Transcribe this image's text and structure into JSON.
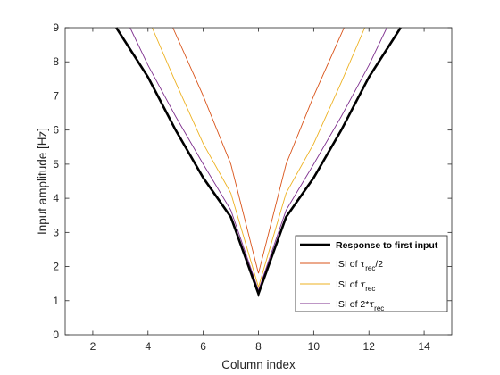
{
  "chart_data": {
    "type": "line",
    "xlabel": "Column index",
    "ylabel": "Input amplitude [Hz]",
    "xlim": [
      1,
      15
    ],
    "ylim": [
      0,
      9
    ],
    "xticks": [
      2,
      4,
      6,
      8,
      10,
      12,
      14
    ],
    "yticks": [
      0,
      1,
      2,
      3,
      4,
      5,
      6,
      7,
      8,
      9
    ],
    "grid": false,
    "legend_position": "bottom-right",
    "series": [
      {
        "name": "Response to first input",
        "color": "#000000",
        "x": [
          2.85,
          4,
          5,
          6,
          7,
          8,
          9,
          10,
          11,
          12,
          13.15
        ],
        "y": [
          9,
          7.55,
          6.0,
          4.6,
          3.45,
          1.2,
          3.45,
          4.6,
          6.0,
          7.55,
          9
        ]
      },
      {
        "name": "ISI of τrec/2",
        "name_main": "ISI of ",
        "name_symbol": "τ",
        "name_sub": "rec",
        "name_suffix": "/2",
        "color": "#d95319",
        "x": [
          4.9,
          6,
          7,
          8,
          9,
          10,
          11.1
        ],
        "y": [
          9,
          7.0,
          5.0,
          1.8,
          5.0,
          7.0,
          9
        ]
      },
      {
        "name": "ISI of τrec",
        "name_main": "ISI of ",
        "name_symbol": "τ",
        "name_sub": "rec",
        "name_suffix": "",
        "color": "#edb120",
        "x": [
          4.15,
          5,
          6,
          7,
          8,
          9,
          10,
          11,
          11.85
        ],
        "y": [
          9,
          7.4,
          5.6,
          4.15,
          1.4,
          4.15,
          5.6,
          7.4,
          9
        ]
      },
      {
        "name": "ISI of 2*τrec",
        "name_main": "ISI of 2*",
        "name_symbol": "τ",
        "name_sub": "rec",
        "name_suffix": "",
        "color": "#7e2f8e",
        "x": [
          3.35,
          4,
          5,
          6,
          7,
          8,
          9,
          10,
          11,
          12,
          12.65
        ],
        "y": [
          9,
          7.9,
          6.4,
          5.0,
          3.65,
          1.3,
          3.65,
          5.0,
          6.4,
          7.9,
          9
        ]
      }
    ]
  }
}
